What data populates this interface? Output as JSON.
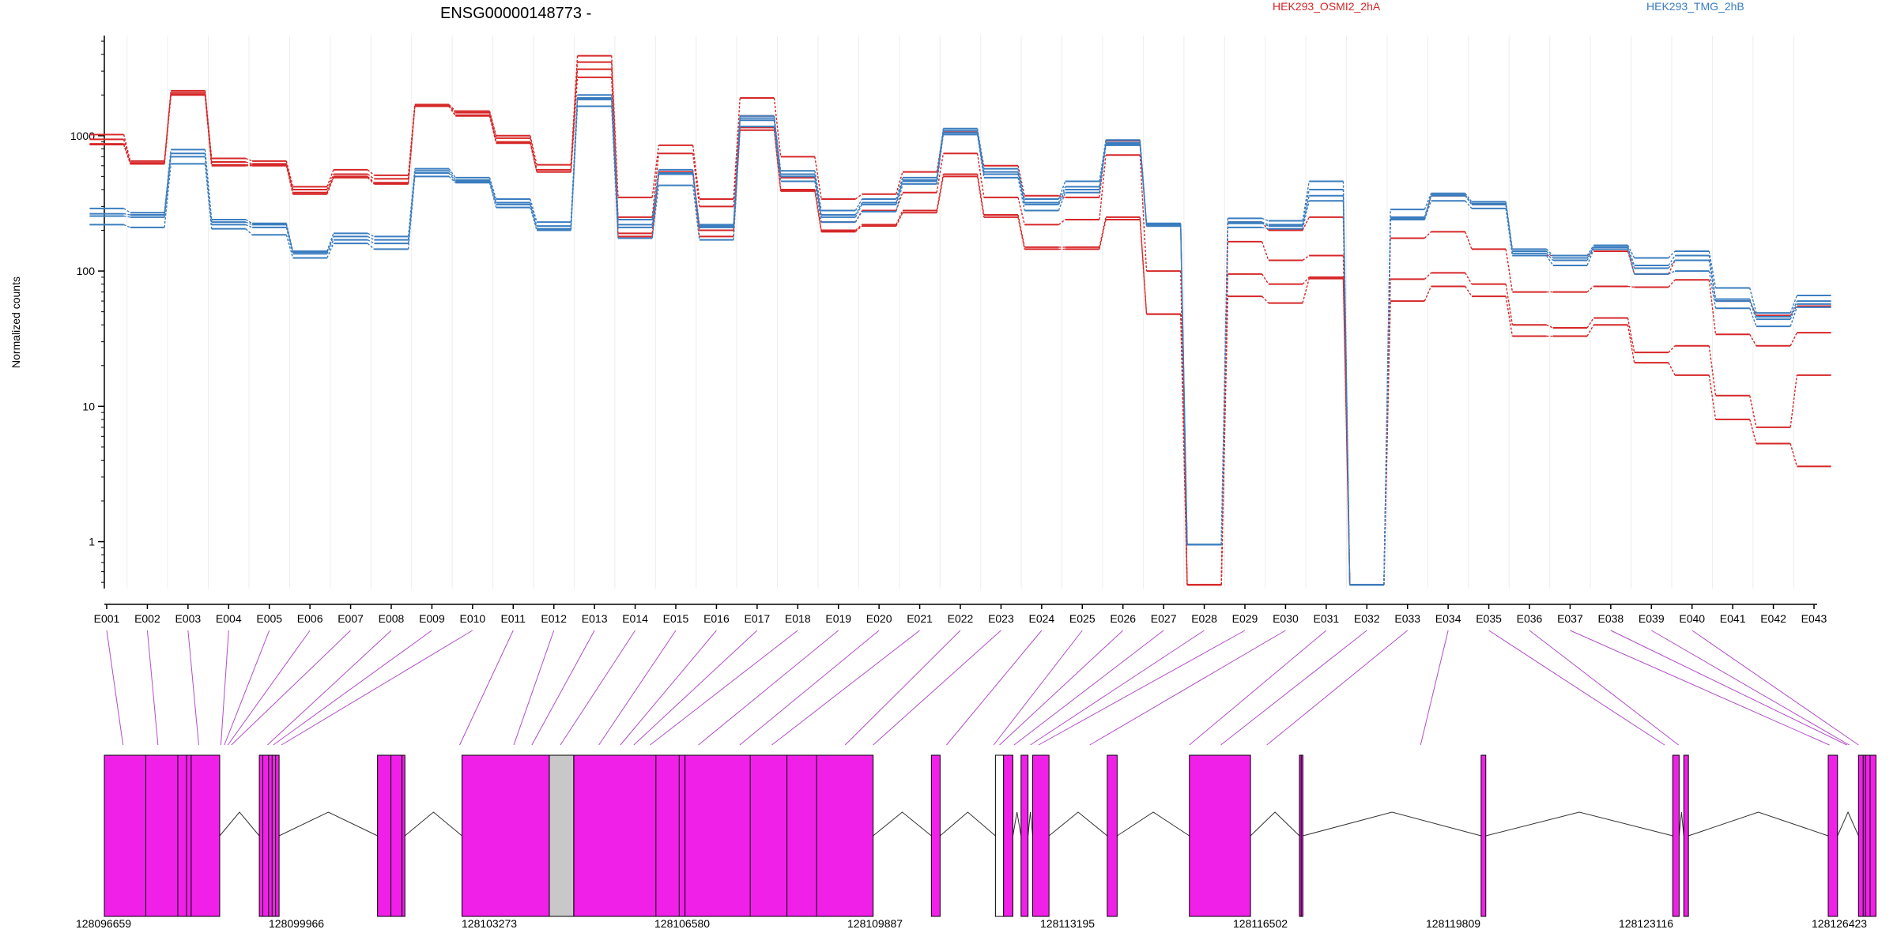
{
  "chart_data": {
    "type": "line",
    "title": "ENSG00000148773 -",
    "ylabel": "Normalized counts",
    "yscale": "log",
    "ylim": [
      0.45,
      5500
    ],
    "yticks": [
      1,
      10,
      100,
      1000
    ],
    "ytick_labels": [
      "1",
      "10",
      "100",
      "1000"
    ],
    "categories": [
      "E001",
      "E002",
      "E003",
      "E004",
      "E005",
      "E006",
      "E007",
      "E008",
      "E009",
      "E010",
      "E011",
      "E012",
      "E013",
      "E014",
      "E015",
      "E016",
      "E017",
      "E018",
      "E019",
      "E020",
      "E021",
      "E022",
      "E023",
      "E024",
      "E025",
      "E026",
      "E027",
      "E028",
      "E029",
      "E030",
      "E031",
      "E032",
      "E033",
      "E034",
      "E035",
      "E036",
      "E037",
      "E038",
      "E039",
      "E040",
      "E041",
      "E042",
      "E043"
    ],
    "legend": [
      {
        "label": "HEK293_OSMI2_2hA",
        "color": "#d62728"
      },
      {
        "label": "HEK293_TMG_2hB",
        "color": "#3a7dbf"
      }
    ],
    "series": [
      {
        "group": "HEK293_OSMI2_2hA",
        "color": "#d62728",
        "values": [
          1020,
          650,
          2150,
          680,
          650,
          420,
          560,
          510,
          1700,
          1520,
          1000,
          610,
          3900,
          350,
          850,
          340,
          1900,
          700,
          340,
          370,
          540,
          1060,
          600,
          360,
          350,
          920,
          220,
          0.48,
          230,
          200,
          250,
          0.48,
          240,
          360,
          310,
          130,
          130,
          140,
          95,
          120,
          60,
          47,
          55
        ]
      },
      {
        "group": "HEK293_OSMI2_2hA",
        "color": "#d62728",
        "values": [
          940,
          630,
          2080,
          640,
          620,
          400,
          520,
          480,
          1680,
          1480,
          960,
          560,
          3500,
          250,
          740,
          300,
          1400,
          490,
          230,
          280,
          380,
          740,
          350,
          220,
          240,
          720,
          100,
          0.48,
          165,
          120,
          130,
          0.48,
          175,
          195,
          145,
          70,
          70,
          77,
          76,
          86,
          34,
          28,
          35
        ]
      },
      {
        "group": "HEK293_OSMI2_2hA",
        "color": "#d62728",
        "values": [
          870,
          620,
          2020,
          610,
          610,
          380,
          500,
          450,
          1650,
          1420,
          900,
          540,
          3100,
          190,
          540,
          200,
          1150,
          400,
          200,
          220,
          280,
          520,
          260,
          150,
          150,
          250,
          48,
          0.48,
          95,
          80,
          90,
          0.48,
          87,
          97,
          80,
          40,
          38,
          45,
          25,
          28,
          12,
          7,
          17
        ]
      },
      {
        "group": "HEK293_OSMI2_2hA",
        "color": "#d62728",
        "values": [
          860,
          620,
          2000,
          600,
          600,
          370,
          490,
          440,
          1650,
          1400,
          880,
          540,
          2700,
          180,
          520,
          180,
          1100,
          390,
          195,
          215,
          270,
          500,
          250,
          145,
          145,
          240,
          48,
          0.48,
          65,
          58,
          88,
          0.48,
          60,
          77,
          65,
          33,
          33,
          40,
          21,
          17,
          8,
          5.3,
          3.6
        ]
      },
      {
        "group": "HEK293_TMG_2hB",
        "color": "#3a7dbf",
        "values": [
          290,
          270,
          790,
          240,
          225,
          140,
          190,
          180,
          570,
          490,
          340,
          230,
          2000,
          240,
          560,
          220,
          1400,
          550,
          280,
          340,
          490,
          1130,
          570,
          340,
          460,
          930,
          225,
          0.95,
          245,
          235,
          460,
          0.48,
          285,
          375,
          325,
          145,
          130,
          155,
          125,
          140,
          75,
          49,
          66
        ]
      },
      {
        "group": "HEK293_TMG_2hB",
        "color": "#3a7dbf",
        "values": [
          265,
          260,
          740,
          230,
          220,
          138,
          180,
          170,
          550,
          470,
          320,
          215,
          1900,
          220,
          530,
          215,
          1350,
          520,
          260,
          320,
          470,
          1090,
          540,
          320,
          420,
          890,
          220,
          0.95,
          230,
          220,
          400,
          0.48,
          250,
          365,
          315,
          140,
          125,
          150,
          110,
          130,
          62,
          46,
          60
        ]
      },
      {
        "group": "HEK293_TMG_2hB",
        "color": "#3a7dbf",
        "values": [
          255,
          250,
          700,
          220,
          210,
          134,
          170,
          160,
          530,
          460,
          310,
          205,
          1850,
          210,
          520,
          210,
          1300,
          500,
          250,
          310,
          460,
          1050,
          520,
          310,
          400,
          870,
          215,
          0.95,
          225,
          215,
          360,
          0.48,
          245,
          360,
          310,
          135,
          120,
          150,
          105,
          120,
          60,
          44,
          57
        ]
      },
      {
        "group": "HEK293_TMG_2hB",
        "color": "#3a7dbf",
        "values": [
          220,
          210,
          620,
          205,
          185,
          125,
          160,
          145,
          500,
          450,
          295,
          200,
          1650,
          175,
          430,
          170,
          1170,
          460,
          230,
          275,
          440,
          1020,
          490,
          280,
          380,
          850,
          215,
          0.95,
          210,
          205,
          330,
          0.48,
          240,
          330,
          290,
          130,
          110,
          145,
          95,
          100,
          53,
          39,
          54
        ]
      }
    ],
    "gene_start": "128096659",
    "gene_end": "128126423",
    "genomic_ticks": [
      "128096659",
      "128099966",
      "128103273",
      "128106580",
      "128109887",
      "128113195",
      "128116502",
      "128119809",
      "128123116",
      "128126423"
    ],
    "exon_blocks": [
      {
        "start": 128096659,
        "end": 128098640,
        "color": "#f020e8"
      },
      {
        "start": 128099320,
        "end": 128099480,
        "color": "#f020e8"
      },
      {
        "start": 128099480,
        "end": 128099600,
        "color": "#f020e8"
      },
      {
        "start": 128099600,
        "end": 128099660,
        "color": "#f020e8"
      },
      {
        "start": 128101350,
        "end": 128101580,
        "color": "#f020e8"
      },
      {
        "start": 128101580,
        "end": 128101770,
        "color": "#f020e8"
      },
      {
        "start": 128101770,
        "end": 128101820,
        "color": "#f020e8"
      },
      {
        "start": 128102800,
        "end": 128104300,
        "color": "#f020e8"
      },
      {
        "start": 128104300,
        "end": 128104720,
        "color": "#c8c8c8"
      },
      {
        "start": 128104720,
        "end": 128109860,
        "color": "#f020e8"
      },
      {
        "start": 128110860,
        "end": 128111010,
        "color": "#f020e8"
      },
      {
        "start": 128111960,
        "end": 128112100,
        "color": "#ffffff"
      },
      {
        "start": 128112100,
        "end": 128112260,
        "color": "#f020e8"
      },
      {
        "start": 128112400,
        "end": 128112520,
        "color": "#f020e8"
      },
      {
        "start": 128112600,
        "end": 128112880,
        "color": "#f020e8"
      },
      {
        "start": 128113880,
        "end": 128114050,
        "color": "#f020e8"
      },
      {
        "start": 128115290,
        "end": 128116340,
        "color": "#f020e8"
      },
      {
        "start": 128117180,
        "end": 128117240,
        "color": "#f020e8"
      },
      {
        "start": 128120300,
        "end": 128120380,
        "color": "#f020e8"
      },
      {
        "start": 128123590,
        "end": 128123700,
        "color": "#f020e8"
      },
      {
        "start": 128123780,
        "end": 128123860,
        "color": "#f020e8"
      },
      {
        "start": 128126260,
        "end": 128126420,
        "color": "#f020e8"
      },
      {
        "start": 128126780,
        "end": 128126900,
        "color": "#f020e8"
      },
      {
        "start": 128126900,
        "end": 128127080,
        "color": "#f020e8"
      }
    ],
    "exon_dividers": [
      128097370,
      128097920,
      128098070,
      128098150,
      128099380,
      128099540,
      128104300,
      128104720,
      128106130,
      128106530,
      128106630,
      128107750,
      128108380,
      128108890,
      128117210,
      128126860,
      128126980
    ],
    "connector_targets": [
      128096980,
      128097580,
      128098280,
      128098660,
      128098720,
      128098780,
      128098840,
      128099460,
      128099560,
      128099700,
      128102760,
      128103690,
      128104000,
      128104490,
      128105150,
      128105520,
      128105750,
      128106030,
      128106860,
      128107570,
      128108120,
      128109380,
      128109860,
      128111120,
      128111930,
      128112030,
      128112280,
      128112560,
      128112700,
      128113580,
      128115290,
      128115830,
      128116620,
      128119260,
      128123450,
      128123690,
      128126280,
      128126580,
      128126620,
      128126780
    ]
  }
}
